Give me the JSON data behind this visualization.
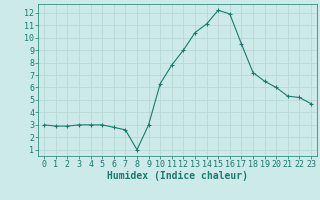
{
  "x": [
    0,
    1,
    2,
    3,
    4,
    5,
    6,
    7,
    8,
    9,
    10,
    11,
    12,
    13,
    14,
    15,
    16,
    17,
    18,
    19,
    20,
    21,
    22,
    23
  ],
  "y": [
    3.0,
    2.9,
    2.9,
    3.0,
    3.0,
    3.0,
    2.8,
    2.6,
    1.0,
    3.0,
    6.3,
    7.8,
    9.0,
    10.4,
    11.1,
    12.2,
    11.9,
    9.5,
    7.2,
    6.5,
    6.0,
    5.3,
    5.2,
    4.7
  ],
  "xlabel": "Humidex (Indice chaleur)",
  "xlim": [
    -0.5,
    23.5
  ],
  "ylim": [
    0.5,
    12.7
  ],
  "yticks": [
    1,
    2,
    3,
    4,
    5,
    6,
    7,
    8,
    9,
    10,
    11,
    12
  ],
  "xticks": [
    0,
    1,
    2,
    3,
    4,
    5,
    6,
    7,
    8,
    9,
    10,
    11,
    12,
    13,
    14,
    15,
    16,
    17,
    18,
    19,
    20,
    21,
    22,
    23
  ],
  "line_color": "#1a7a6e",
  "marker": "+",
  "bg_color": "#cdeaea",
  "grid_color": "#b8d8d8",
  "axis_color": "#1a7a6e",
  "label_color": "#1a7a6e",
  "xlabel_fontsize": 7,
  "tick_fontsize": 6
}
